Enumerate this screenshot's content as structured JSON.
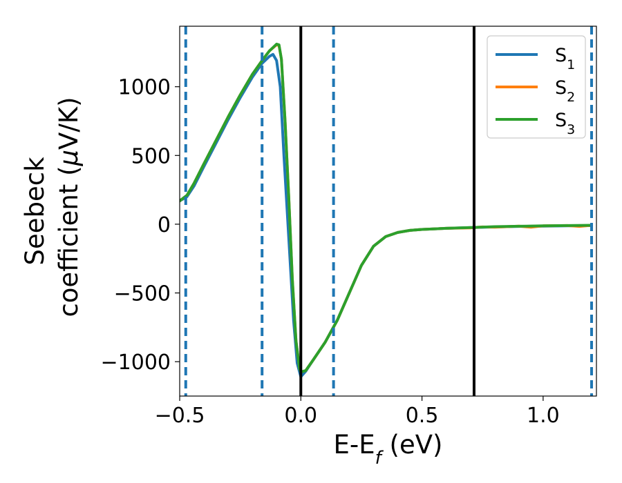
{
  "chart_data": {
    "type": "line",
    "xlabel": {
      "main": "E-E",
      "sub": "f",
      "unit": " (eV)"
    },
    "ylabel": {
      "line1": "Seebeck",
      "line2_prefix": "coefficient  (",
      "line2_mu": "μ",
      "line2_suffix": "V/K)"
    },
    "xlim": [
      -0.5,
      1.22
    ],
    "ylim": [
      -1250,
      1440
    ],
    "xticks": [
      -0.5,
      0.0,
      0.5,
      1.0
    ],
    "xtick_labels": [
      "−0.5",
      "0.0",
      "0.5",
      "1.0"
    ],
    "yticks": [
      -1000,
      -500,
      0,
      500,
      1000
    ],
    "ytick_labels": [
      "−1000",
      "−500",
      "0",
      "500",
      "1000"
    ],
    "grid": false,
    "legend_position": "top-right",
    "vlines_solid": [
      0.0,
      0.715
    ],
    "vlines_dashed": [
      -0.475,
      -0.16,
      0.135,
      1.2
    ],
    "line_colors": {
      "solid": "#000000",
      "dashed": "#1f77b4"
    },
    "series": [
      {
        "name": "S",
        "sub": "1",
        "color": "#1f77b4",
        "x": [
          -0.5,
          -0.47,
          -0.44,
          -0.4,
          -0.35,
          -0.3,
          -0.25,
          -0.2,
          -0.16,
          -0.13,
          -0.115,
          -0.1,
          -0.085,
          -0.07,
          -0.05,
          -0.03,
          -0.015,
          0.0,
          0.02,
          0.05,
          0.1,
          0.15,
          0.2,
          0.25,
          0.3,
          0.35,
          0.4,
          0.45,
          0.5,
          0.6,
          0.7,
          0.8,
          0.9,
          1.0,
          1.1,
          1.2
        ],
        "y": [
          170,
          200,
          280,
          420,
          590,
          760,
          920,
          1070,
          1170,
          1220,
          1235,
          1190,
          1000,
          500,
          -100,
          -700,
          -1010,
          -1110,
          -1070,
          -990,
          -860,
          -700,
          -500,
          -300,
          -160,
          -90,
          -60,
          -45,
          -38,
          -30,
          -25,
          -20,
          -16,
          -14,
          -12,
          -10
        ]
      },
      {
        "name": "S",
        "sub": "2",
        "color": "#ff7f0e",
        "x": [
          -0.5,
          -0.47,
          -0.44,
          -0.4,
          -0.35,
          -0.3,
          -0.25,
          -0.2,
          -0.16,
          -0.13,
          -0.1,
          -0.09,
          -0.08,
          -0.065,
          -0.05,
          -0.035,
          -0.02,
          -0.005,
          0.0,
          0.02,
          0.05,
          0.1,
          0.15,
          0.2,
          0.25,
          0.3,
          0.35,
          0.4,
          0.45,
          0.5,
          0.6,
          0.7,
          0.75,
          0.8,
          0.9,
          0.95,
          1.0,
          1.1,
          1.15,
          1.2
        ],
        "y": [
          170,
          210,
          300,
          440,
          610,
          780,
          940,
          1090,
          1190,
          1260,
          1305,
          1300,
          1200,
          750,
          200,
          -400,
          -850,
          -1050,
          -1075,
          -1065,
          -990,
          -860,
          -700,
          -500,
          -300,
          -160,
          -90,
          -60,
          -45,
          -38,
          -30,
          -27,
          -20,
          -22,
          -14,
          -22,
          -12,
          -10,
          -16,
          -8
        ]
      },
      {
        "name": "S",
        "sub": "3",
        "color": "#2ca02c",
        "x": [
          -0.5,
          -0.47,
          -0.44,
          -0.4,
          -0.35,
          -0.3,
          -0.25,
          -0.2,
          -0.16,
          -0.13,
          -0.1,
          -0.09,
          -0.08,
          -0.065,
          -0.05,
          -0.035,
          -0.02,
          -0.005,
          0.0,
          0.02,
          0.05,
          0.1,
          0.15,
          0.2,
          0.25,
          0.3,
          0.35,
          0.4,
          0.45,
          0.5,
          0.6,
          0.7,
          0.8,
          0.9,
          1.0,
          1.1,
          1.2
        ],
        "y": [
          170,
          210,
          300,
          440,
          610,
          780,
          940,
          1090,
          1190,
          1260,
          1310,
          1305,
          1200,
          750,
          200,
          -400,
          -850,
          -1050,
          -1075,
          -1065,
          -990,
          -860,
          -700,
          -500,
          -300,
          -160,
          -90,
          -60,
          -45,
          -38,
          -30,
          -24,
          -18,
          -15,
          -12,
          -10,
          -8
        ]
      }
    ]
  }
}
